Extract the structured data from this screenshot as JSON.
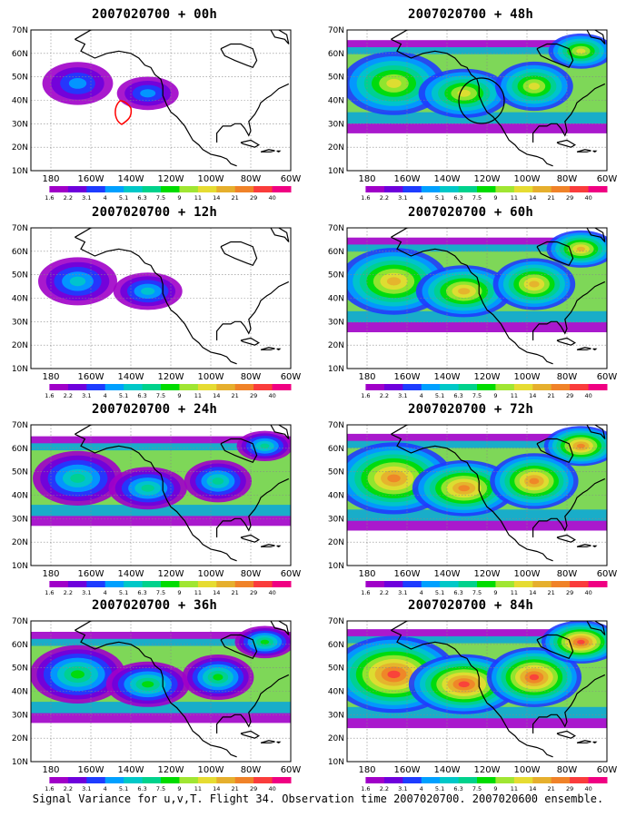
{
  "panels": [
    {
      "title": "2007020700 + 00h",
      "lead": "00h",
      "intensity": 0.15
    },
    {
      "title": "2007020700 + 48h",
      "lead": "48h",
      "intensity": 0.55
    },
    {
      "title": "2007020700 + 12h",
      "lead": "12h",
      "intensity": 0.25
    },
    {
      "title": "2007020700 + 60h",
      "lead": "60h",
      "intensity": 0.62
    },
    {
      "title": "2007020700 + 24h",
      "lead": "24h",
      "intensity": 0.38
    },
    {
      "title": "2007020700 + 72h",
      "lead": "72h",
      "intensity": 0.72
    },
    {
      "title": "2007020700 + 36h",
      "lead": "36h",
      "intensity": 0.45
    },
    {
      "title": "2007020700 + 84h",
      "lead": "84h",
      "intensity": 0.82
    }
  ],
  "lat_labels": [
    "70N",
    "60N",
    "50N",
    "40N",
    "30N",
    "20N",
    "10N"
  ],
  "lon_labels": [
    "180",
    "160W",
    "140W",
    "120W",
    "100W",
    "80W",
    "60W"
  ],
  "colorbar": {
    "labels": [
      "1.6",
      "2.2",
      "3.1",
      "4",
      "5.1",
      "6.3",
      "7.5",
      "9",
      "11",
      "14",
      "21",
      "29",
      "40"
    ],
    "colors": [
      "#a000c8",
      "#6e00dc",
      "#1e3cff",
      "#00a0ff",
      "#00c8c8",
      "#00d28c",
      "#00dc00",
      "#a0e632",
      "#e6dc32",
      "#e6af2d",
      "#f08228",
      "#fa3c3c",
      "#f00082"
    ]
  },
  "footer": "Signal Variance for u,v,T. Flight 34. Observation time 2007020700. 2007020600 ensemble."
}
